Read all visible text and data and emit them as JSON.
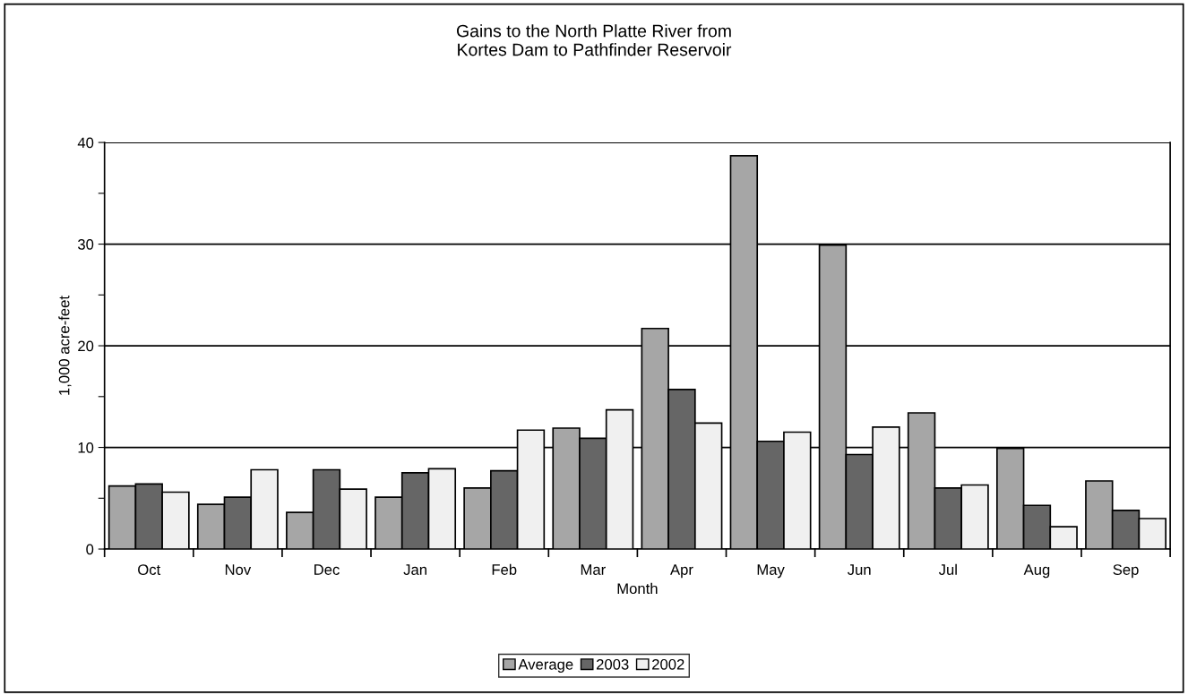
{
  "chart_data": {
    "type": "bar",
    "title": "Gains to the North Platte River from\nKortes Dam to Pathfinder Reservoir",
    "xlabel": "Month",
    "ylabel": "1,000 acre-feet",
    "categories": [
      "Oct",
      "Nov",
      "Dec",
      "Jan",
      "Feb",
      "Mar",
      "Apr",
      "May",
      "Jun",
      "Jul",
      "Aug",
      "Sep"
    ],
    "series": [
      {
        "name": "Average",
        "color": "#a6a6a6",
        "values": [
          6.2,
          4.4,
          3.6,
          5.1,
          6.0,
          11.9,
          21.7,
          38.7,
          29.9,
          13.4,
          9.9,
          6.7
        ]
      },
      {
        "name": "2003",
        "color": "#666666",
        "values": [
          6.4,
          5.1,
          7.8,
          7.5,
          7.7,
          10.9,
          15.7,
          10.6,
          9.3,
          6.0,
          4.3,
          3.8
        ]
      },
      {
        "name": "2002",
        "color": "#f0f0f0",
        "values": [
          5.6,
          7.8,
          5.9,
          7.9,
          11.7,
          13.7,
          12.4,
          11.5,
          12.0,
          6.3,
          2.2,
          3.0
        ]
      }
    ],
    "ylim": [
      0,
      40
    ],
    "yticks": [
      0,
      {
        "value": 5,
        "label": null
      },
      10,
      {
        "value": 15,
        "label": null
      },
      20,
      {
        "value": 25,
        "label": null
      },
      30,
      {
        "value": 35,
        "label": null
      },
      40
    ],
    "grid": "y",
    "legend": "bottom"
  }
}
